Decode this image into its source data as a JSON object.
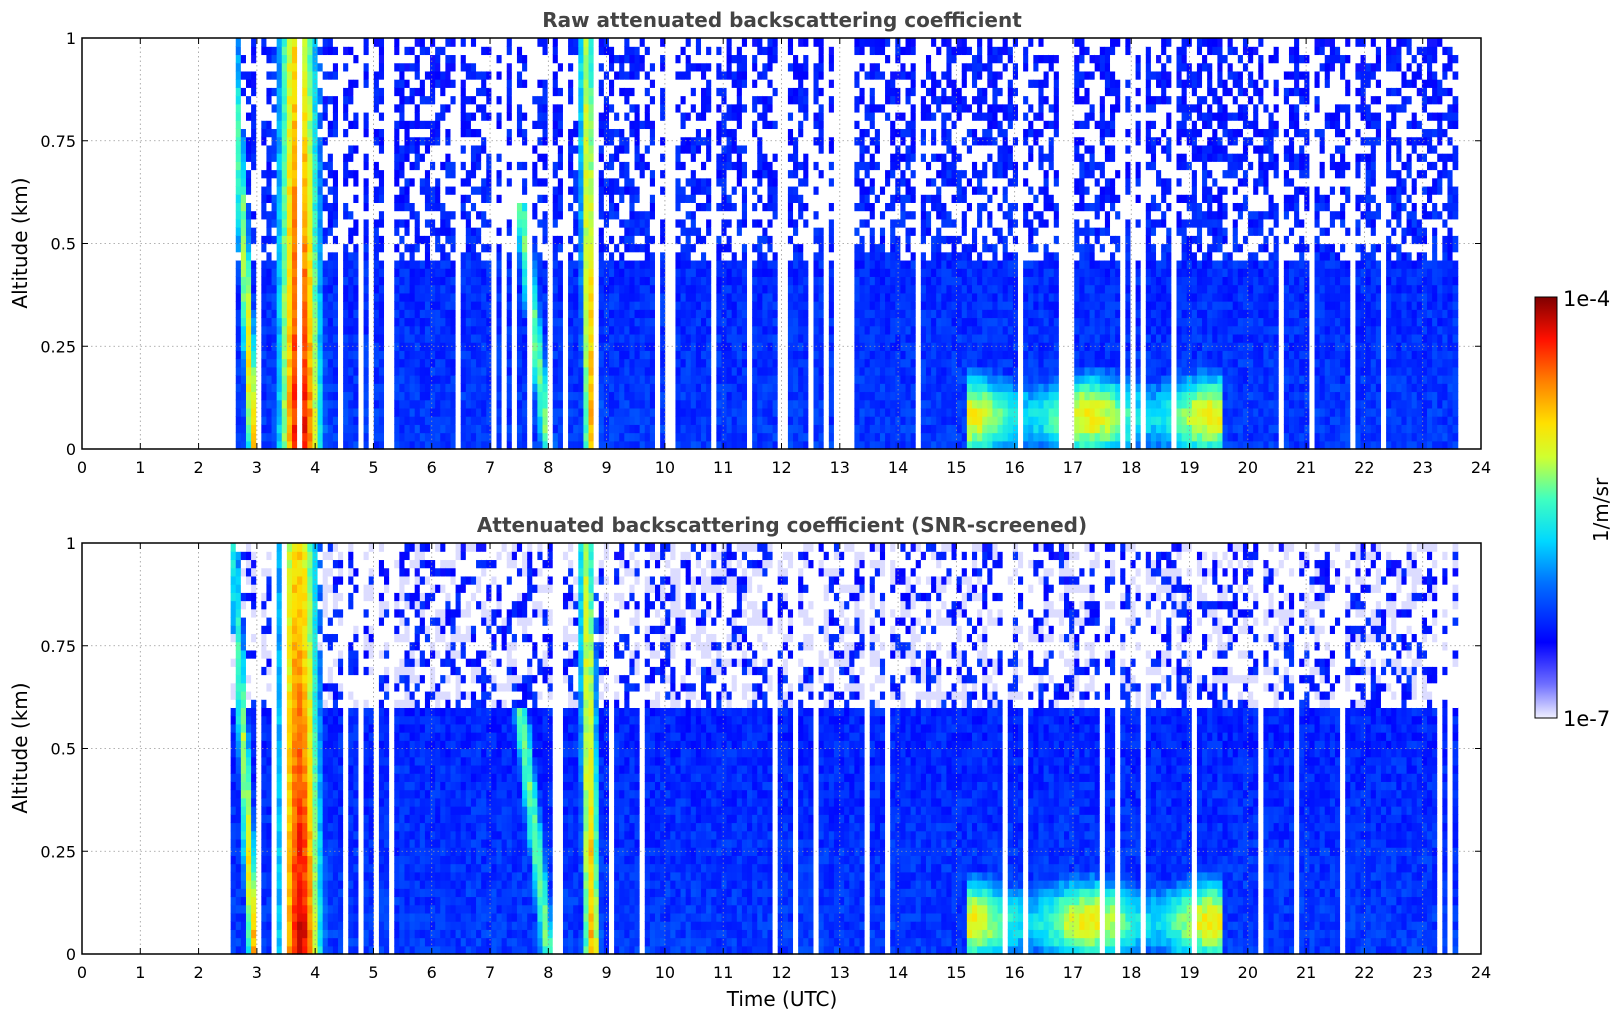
{
  "chart_data": [
    {
      "type": "heatmap",
      "title": "Raw attenuated backscattering coefficient",
      "xlabel": "",
      "ylabel": "Altitude (km)",
      "xlim": [
        0,
        24
      ],
      "ylim": [
        0,
        1
      ],
      "xticks": [
        "0",
        "1",
        "2",
        "3",
        "4",
        "5",
        "6",
        "7",
        "8",
        "9",
        "10",
        "11",
        "12",
        "13",
        "14",
        "15",
        "16",
        "17",
        "18",
        "19",
        "20",
        "21",
        "22",
        "23",
        "24"
      ],
      "yticks": [
        "0",
        "0.25",
        "0.5",
        "0.75",
        "1"
      ],
      "grid": true,
      "data_start_time": 2.55,
      "data_end_time": 23.6,
      "features": [
        {
          "time_range": [
            2.55,
            3.0
          ],
          "altitude_range": [
            0,
            1
          ],
          "level": "high"
        },
        {
          "time_range": [
            3.3,
            4.3
          ],
          "altitude_range": [
            0,
            1
          ],
          "level": "very high"
        },
        {
          "time_range": [
            7.5,
            8.3
          ],
          "altitude_range": [
            0,
            0.6
          ],
          "level": "moderate"
        },
        {
          "time_range": [
            8.5,
            9.0
          ],
          "altitude_range": [
            0,
            1
          ],
          "level": "high"
        },
        {
          "time_range": [
            15.2,
            19.6
          ],
          "altitude_range": [
            0,
            0.25
          ],
          "level": "moderate-high"
        }
      ]
    },
    {
      "type": "heatmap",
      "title": "Attenuated backscattering coefficient (SNR-screened)",
      "xlabel": "Time (UTC)",
      "ylabel": "Altitude (km)",
      "xlim": [
        0,
        24
      ],
      "ylim": [
        0,
        1
      ],
      "xticks": [
        "0",
        "1",
        "2",
        "3",
        "4",
        "5",
        "6",
        "7",
        "8",
        "9",
        "10",
        "11",
        "12",
        "13",
        "14",
        "15",
        "16",
        "17",
        "18",
        "19",
        "20",
        "21",
        "22",
        "23",
        "24"
      ],
      "yticks": [
        "0",
        "0.25",
        "0.5",
        "0.75",
        "1"
      ],
      "grid": true,
      "data_start_time": 2.55,
      "data_end_time": 23.6
    }
  ],
  "colorbar": {
    "label": "1/m/sr",
    "max_label": "1e-4",
    "min_label": "1e-7",
    "scale": "log",
    "colormap": "jet",
    "range": [
      1e-07,
      0.0001
    ]
  }
}
